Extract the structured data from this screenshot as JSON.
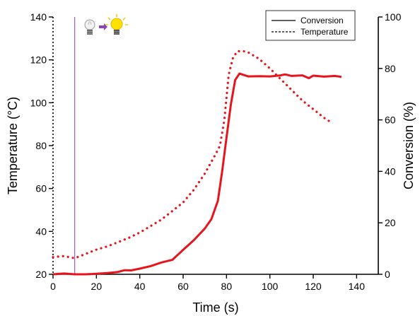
{
  "chart_data": {
    "type": "line",
    "xlabel": "Time (s)",
    "ylabel_left": "Temperature (°C)",
    "ylabel_right": "Conversion (%)",
    "xlim": [
      0,
      150
    ],
    "ylim_left": [
      20,
      140
    ],
    "ylim_right": [
      0,
      100
    ],
    "x_ticks": [
      "0",
      "20",
      "40",
      "60",
      "80",
      "100",
      "120",
      "140"
    ],
    "y_left_ticks": [
      "20",
      "40",
      "60",
      "80",
      "100",
      "120",
      "140"
    ],
    "y_right_ticks": [
      "0",
      "20",
      "40",
      "60",
      "80",
      "100"
    ],
    "grid": false,
    "legend_position": "top-right",
    "legend": [
      "Conversion",
      "Temperature"
    ],
    "annotations": {
      "light_on_time": 10,
      "light_icon_off": "light-bulb-off-icon",
      "light_icon_on": "light-bulb-on-icon"
    },
    "colors": {
      "series": "#e8141b",
      "light_on_line": "#9b59d6",
      "axis": "#000000"
    },
    "series": [
      {
        "name": "Conversion",
        "style": "solid",
        "axis": "right",
        "x": [
          0,
          5,
          10,
          15,
          20,
          25,
          30,
          33,
          36,
          40,
          45,
          50,
          55,
          60,
          65,
          70,
          73,
          76,
          78,
          80,
          82,
          84,
          86,
          90,
          95,
          100,
          105,
          107,
          110,
          115,
          118,
          120,
          125,
          130,
          133
        ],
        "y": [
          0,
          0.3,
          0,
          0,
          0.2,
          0.5,
          0.9,
          1.6,
          1.5,
          2.2,
          3.2,
          4.6,
          5.6,
          9.5,
          13.3,
          17.8,
          21.4,
          28.5,
          40,
          53,
          66,
          75.5,
          78,
          76.9,
          77,
          76.9,
          77.3,
          77.7,
          77.1,
          77.3,
          76.2,
          77.2,
          76.8,
          77.1,
          76.7
        ]
      },
      {
        "name": "Temperature",
        "style": "dotted",
        "axis": "left",
        "x": [
          0,
          5,
          10,
          15,
          20,
          25,
          30,
          35,
          40,
          45,
          50,
          55,
          60,
          65,
          70,
          75,
          77,
          79,
          81,
          83,
          85,
          88,
          90,
          95,
          100,
          105,
          110,
          115,
          120,
          125,
          128
        ],
        "y": [
          28,
          28.5,
          27.5,
          29.5,
          31.5,
          33,
          35,
          37,
          39.5,
          42.5,
          45.5,
          49.5,
          53.5,
          59.5,
          67,
          76,
          80,
          92,
          113,
          121,
          124,
          124,
          123.5,
          120.5,
          116,
          111,
          106,
          101,
          97,
          93,
          91
        ]
      }
    ]
  }
}
